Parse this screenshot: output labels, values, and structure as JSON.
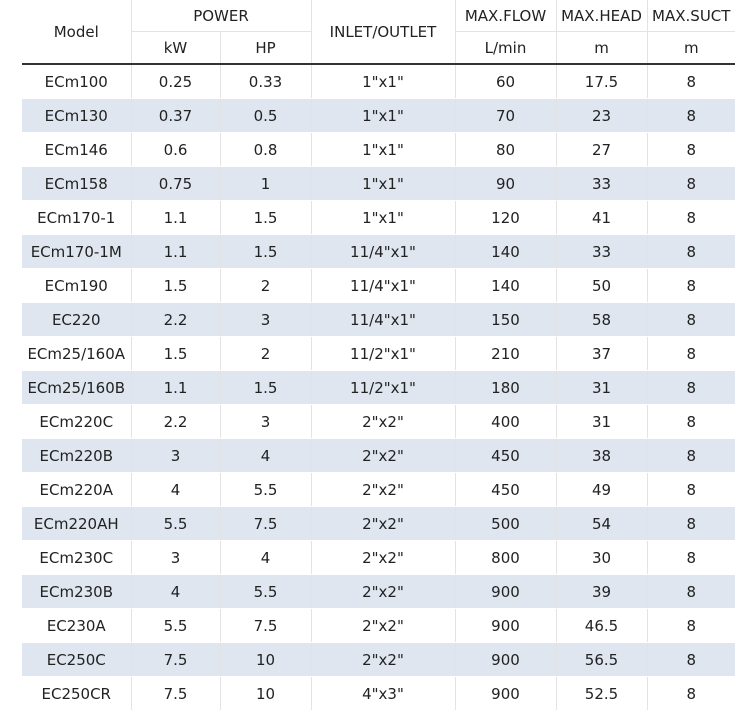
{
  "header": {
    "model": "Model",
    "power": "POWER",
    "inlet_outlet": "INLET/OUTLET",
    "max_flow": "MAX.FLOW",
    "max_head": "MAX.HEAD",
    "max_suct": "MAX.SUCT",
    "units": [
      "kW",
      "HP",
      "L/min",
      "m",
      "m"
    ]
  },
  "table": {
    "rows": [
      [
        "ECm100",
        "0.25",
        "0.33",
        "1\"x1\"",
        "60",
        "17.5",
        "8"
      ],
      [
        "ECm130",
        "0.37",
        "0.5",
        "1\"x1\"",
        "70",
        "23",
        "8"
      ],
      [
        "ECm146",
        "0.6",
        "0.8",
        "1\"x1\"",
        "80",
        "27",
        "8"
      ],
      [
        "ECm158",
        "0.75",
        "1",
        "1\"x1\"",
        "90",
        "33",
        "8"
      ],
      [
        "ECm170-1",
        "1.1",
        "1.5",
        "1\"x1\"",
        "120",
        "41",
        "8"
      ],
      [
        "ECm170-1M",
        "1.1",
        "1.5",
        "11/4\"x1\"",
        "140",
        "33",
        "8"
      ],
      [
        "ECm190",
        "1.5",
        "2",
        "11/4\"x1\"",
        "140",
        "50",
        "8"
      ],
      [
        "EC220",
        "2.2",
        "3",
        "11/4\"x1\"",
        "150",
        "58",
        "8"
      ],
      [
        "ECm25/160A",
        "1.5",
        "2",
        "11/2\"x1\"",
        "210",
        "37",
        "8"
      ],
      [
        "ECm25/160B",
        "1.1",
        "1.5",
        "11/2\"x1\"",
        "180",
        "31",
        "8"
      ],
      [
        "ECm220C",
        "2.2",
        "3",
        "2\"x2\"",
        "400",
        "31",
        "8"
      ],
      [
        "ECm220B",
        "3",
        "4",
        "2\"x2\"",
        "450",
        "38",
        "8"
      ],
      [
        "ECm220A",
        "4",
        "5.5",
        "2\"x2\"",
        "450",
        "49",
        "8"
      ],
      [
        "ECm220AH",
        "5.5",
        "7.5",
        "2\"x2\"",
        "500",
        "54",
        "8"
      ],
      [
        "ECm230C",
        "3",
        "4",
        "2\"x2\"",
        "800",
        "30",
        "8"
      ],
      [
        "ECm230B",
        "4",
        "5.5",
        "2\"x2\"",
        "900",
        "39",
        "8"
      ],
      [
        "EC230A",
        "5.5",
        "7.5",
        "2\"x2\"",
        "900",
        "46.5",
        "8"
      ],
      [
        "EC250C",
        "7.5",
        "10",
        "2\"x2\"",
        "900",
        "56.5",
        "8"
      ],
      [
        "EC250CR",
        "7.5",
        "10",
        "4\"x3\"",
        "900",
        "52.5",
        "8"
      ]
    ]
  }
}
